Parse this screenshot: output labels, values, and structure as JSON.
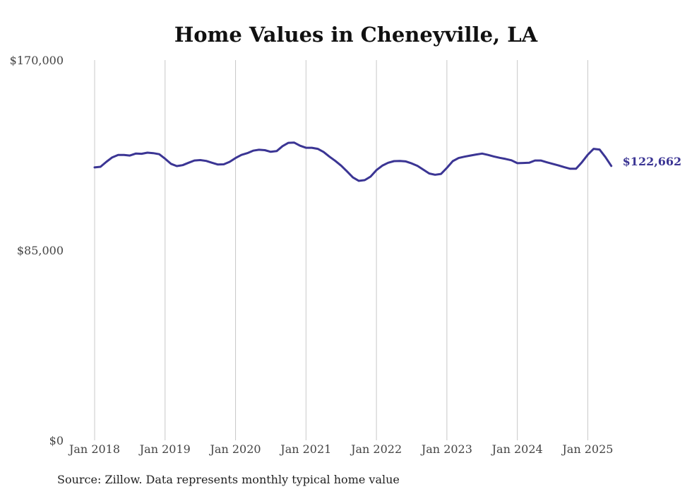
{
  "chart_data": {
    "type": "line",
    "title": "Home Values in Cheneyville, LA",
    "xlabel": "",
    "ylabel": "",
    "source": "Source: Zillow. Data represents monthly typical home value",
    "color": "#3b3594",
    "ylim": [
      0,
      170000
    ],
    "yticks": [
      {
        "value": 0,
        "label": "$0"
      },
      {
        "value": 85000,
        "label": "$85,000"
      },
      {
        "value": 170000,
        "label": "$170,000"
      }
    ],
    "xticks": [
      {
        "value": "2018-01",
        "label": "Jan 2018"
      },
      {
        "value": "2019-01",
        "label": "Jan 2019"
      },
      {
        "value": "2020-01",
        "label": "Jan 2020"
      },
      {
        "value": "2021-01",
        "label": "Jan 2021"
      },
      {
        "value": "2022-01",
        "label": "Jan 2022"
      },
      {
        "value": "2023-01",
        "label": "Jan 2023"
      },
      {
        "value": "2024-01",
        "label": "Jan 2024"
      },
      {
        "value": "2025-01",
        "label": "Jan 2025"
      }
    ],
    "x_range": [
      "2018-01",
      "2025-06"
    ],
    "grid": "vertical",
    "end_label": "$122,662",
    "series": [
      {
        "x": [
          "2018-01",
          "2018-02",
          "2018-03",
          "2018-04",
          "2018-05",
          "2018-06",
          "2018-07",
          "2018-08",
          "2018-09",
          "2018-10",
          "2018-11",
          "2018-12",
          "2019-01",
          "2019-02",
          "2019-03",
          "2019-04",
          "2019-05",
          "2019-06",
          "2019-07",
          "2019-08",
          "2019-09",
          "2019-10",
          "2019-11",
          "2019-12",
          "2020-01",
          "2020-02",
          "2020-03",
          "2020-04",
          "2020-05",
          "2020-06",
          "2020-07",
          "2020-08",
          "2020-09",
          "2020-10",
          "2020-11",
          "2020-12",
          "2021-01",
          "2021-02",
          "2021-03",
          "2021-04",
          "2021-05",
          "2021-06",
          "2021-07",
          "2021-08",
          "2021-09",
          "2021-10",
          "2021-11",
          "2021-12",
          "2022-01",
          "2022-02",
          "2022-03",
          "2022-04",
          "2022-05",
          "2022-06",
          "2022-07",
          "2022-08",
          "2022-09",
          "2022-10",
          "2022-11",
          "2022-12",
          "2023-01",
          "2023-02",
          "2023-03",
          "2023-04",
          "2023-05",
          "2023-06",
          "2023-07",
          "2023-08",
          "2023-09",
          "2023-10",
          "2023-11",
          "2023-12",
          "2024-01",
          "2024-02",
          "2024-03",
          "2024-04",
          "2024-05",
          "2024-06",
          "2024-07",
          "2024-08",
          "2024-09",
          "2024-10",
          "2024-11",
          "2024-12",
          "2025-01",
          "2025-02",
          "2025-03",
          "2025-04",
          "2025-05"
        ],
        "values": [
          122000,
          122300,
          124500,
          126500,
          127600,
          127600,
          127300,
          128200,
          128100,
          128600,
          128400,
          127900,
          125900,
          123600,
          122600,
          123000,
          124100,
          125100,
          125300,
          124900,
          124100,
          123300,
          123400,
          124500,
          126200,
          127600,
          128400,
          129500,
          129900,
          129700,
          129000,
          129300,
          131500,
          133000,
          133100,
          131700,
          130800,
          130800,
          130300,
          128900,
          126800,
          124900,
          122800,
          120200,
          117500,
          116000,
          116300,
          117900,
          120800,
          122800,
          124100,
          124800,
          124900,
          124700,
          123800,
          122700,
          121000,
          119300,
          118700,
          119100,
          121800,
          124800,
          126200,
          126800,
          127300,
          127800,
          128200,
          127600,
          126900,
          126300,
          125800,
          125200,
          123900,
          124000,
          124100,
          125100,
          125100,
          124300,
          123600,
          122900,
          122100,
          121400,
          121400,
          124300,
          127700,
          130300,
          130000,
          126600,
          122662
        ]
      }
    ]
  }
}
